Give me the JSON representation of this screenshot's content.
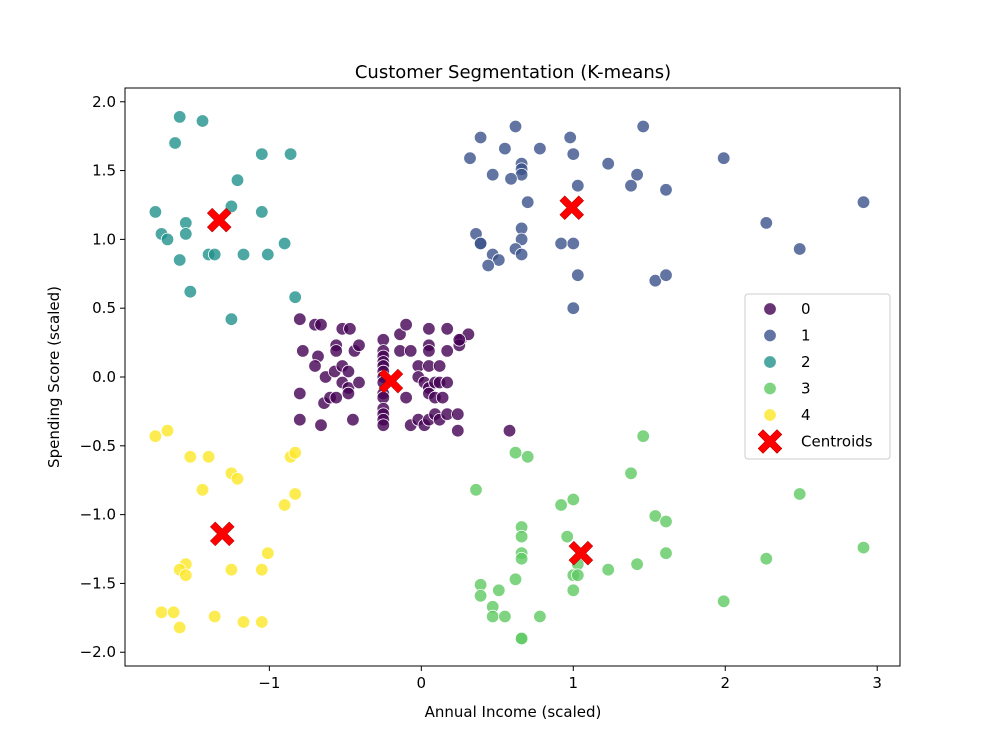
{
  "chart_data": {
    "type": "scatter",
    "title": "Customer Segmentation (K-means)",
    "xlabel": "Annual Income (scaled)",
    "ylabel": "Spending Score (scaled)",
    "xlim": [
      -1.95,
      3.15
    ],
    "ylim": [
      -2.1,
      2.1
    ],
    "xticks": [
      -1,
      0,
      1,
      2,
      3
    ],
    "xtick_labels": [
      "−1",
      "0",
      "1",
      "2",
      "3"
    ],
    "yticks": [
      -2.0,
      -1.5,
      -1.0,
      -0.5,
      0.0,
      0.5,
      1.0,
      1.5,
      2.0
    ],
    "ytick_labels": [
      "−2.0",
      "−1.5",
      "−1.0",
      "−0.5",
      "0.0",
      "0.5",
      "1.0",
      "1.5",
      "2.0"
    ],
    "grid": false,
    "legend_position": "center-right",
    "series": [
      {
        "name": "0",
        "color": "#440154",
        "points": [
          [
            -0.8,
            0.42
          ],
          [
            -0.7,
            0.38
          ],
          [
            -0.66,
            0.38
          ],
          [
            -0.52,
            0.35
          ],
          [
            -0.47,
            0.35
          ],
          [
            -0.25,
            0.27
          ],
          [
            -0.14,
            0.31
          ],
          [
            -0.1,
            0.38
          ],
          [
            0.05,
            0.35
          ],
          [
            0.17,
            0.35
          ],
          [
            0.26,
            0.27
          ],
          [
            0.31,
            0.31
          ],
          [
            -0.78,
            0.19
          ],
          [
            -0.68,
            0.15
          ],
          [
            -0.56,
            0.23
          ],
          [
            -0.56,
            0.19
          ],
          [
            -0.44,
            0.19
          ],
          [
            -0.41,
            0.23
          ],
          [
            -0.25,
            0.19
          ],
          [
            -0.25,
            0.15
          ],
          [
            -0.25,
            0.11
          ],
          [
            -0.14,
            0.19
          ],
          [
            -0.07,
            0.19
          ],
          [
            0.05,
            0.23
          ],
          [
            0.05,
            0.19
          ],
          [
            0.17,
            0.19
          ],
          [
            0.25,
            0.23
          ],
          [
            0.25,
            0.27
          ],
          [
            -0.7,
            0.08
          ],
          [
            -0.63,
            0.0
          ],
          [
            -0.57,
            0.04
          ],
          [
            -0.52,
            0.08
          ],
          [
            -0.48,
            0.04
          ],
          [
            -0.25,
            0.08
          ],
          [
            -0.25,
            0.04
          ],
          [
            -0.25,
            0.0
          ],
          [
            -0.02,
            0.08
          ],
          [
            0.05,
            0.08
          ],
          [
            0.12,
            0.08
          ],
          [
            -0.52,
            -0.04
          ],
          [
            -0.48,
            -0.08
          ],
          [
            -0.41,
            -0.04
          ],
          [
            -0.25,
            -0.04
          ],
          [
            -0.02,
            0.0
          ],
          [
            0.02,
            -0.04
          ],
          [
            0.05,
            -0.08
          ],
          [
            0.09,
            -0.04
          ],
          [
            0.12,
            -0.04
          ],
          [
            0.17,
            -0.04
          ],
          [
            -0.8,
            -0.12
          ],
          [
            -0.64,
            -0.19
          ],
          [
            -0.6,
            -0.15
          ],
          [
            -0.56,
            -0.15
          ],
          [
            -0.48,
            -0.12
          ],
          [
            -0.25,
            -0.12
          ],
          [
            -0.25,
            -0.15
          ],
          [
            -0.1,
            -0.15
          ],
          [
            0.05,
            -0.12
          ],
          [
            0.09,
            -0.15
          ],
          [
            0.14,
            -0.15
          ],
          [
            -0.8,
            -0.31
          ],
          [
            -0.66,
            -0.35
          ],
          [
            -0.45,
            -0.31
          ],
          [
            -0.25,
            -0.23
          ],
          [
            -0.25,
            -0.27
          ],
          [
            -0.25,
            -0.31
          ],
          [
            -0.25,
            -0.35
          ],
          [
            -0.07,
            -0.35
          ],
          [
            -0.02,
            -0.31
          ],
          [
            0.02,
            -0.35
          ],
          [
            0.05,
            -0.31
          ],
          [
            0.09,
            -0.27
          ],
          [
            0.12,
            -0.31
          ],
          [
            0.17,
            -0.27
          ],
          [
            0.24,
            -0.27
          ],
          [
            0.24,
            -0.39
          ],
          [
            0.58,
            -0.39
          ]
        ]
      },
      {
        "name": "1",
        "color": "#3b528b",
        "points": [
          [
            0.62,
            1.82
          ],
          [
            0.39,
            1.74
          ],
          [
            0.98,
            1.74
          ],
          [
            1.46,
            1.82
          ],
          [
            0.55,
            1.66
          ],
          [
            0.78,
            1.66
          ],
          [
            0.32,
            1.59
          ],
          [
            0.66,
            1.55
          ],
          [
            0.66,
            1.51
          ],
          [
            0.66,
            1.47
          ],
          [
            0.47,
            1.47
          ],
          [
            0.59,
            1.44
          ],
          [
            1.0,
            1.62
          ],
          [
            1.23,
            1.55
          ],
          [
            1.42,
            1.47
          ],
          [
            1.38,
            1.39
          ],
          [
            1.03,
            1.39
          ],
          [
            1.61,
            1.36
          ],
          [
            1.99,
            1.59
          ],
          [
            2.91,
            1.27
          ],
          [
            0.7,
            1.27
          ],
          [
            2.27,
            1.12
          ],
          [
            0.36,
            1.04
          ],
          [
            0.66,
            1.08
          ],
          [
            0.66,
            1.0
          ],
          [
            0.39,
            0.97
          ],
          [
            0.39,
            0.97
          ],
          [
            0.62,
            0.93
          ],
          [
            0.47,
            0.89
          ],
          [
            0.66,
            0.89
          ],
          [
            0.51,
            0.85
          ],
          [
            0.44,
            0.81
          ],
          [
            0.92,
            0.97
          ],
          [
            1.0,
            0.97
          ],
          [
            2.49,
            0.93
          ],
          [
            1.03,
            0.74
          ],
          [
            1.54,
            0.7
          ],
          [
            1.61,
            0.74
          ],
          [
            1.0,
            0.5
          ]
        ]
      },
      {
        "name": "2",
        "color": "#21918c",
        "points": [
          [
            -1.59,
            1.89
          ],
          [
            -1.44,
            1.86
          ],
          [
            -1.62,
            1.7
          ],
          [
            -1.05,
            1.62
          ],
          [
            -0.86,
            1.62
          ],
          [
            -1.21,
            1.43
          ],
          [
            -1.25,
            1.24
          ],
          [
            -1.75,
            1.2
          ],
          [
            -1.05,
            1.2
          ],
          [
            -1.55,
            1.12
          ],
          [
            -1.71,
            1.04
          ],
          [
            -1.55,
            1.04
          ],
          [
            -1.67,
            1.0
          ],
          [
            -0.9,
            0.97
          ],
          [
            -1.4,
            0.89
          ],
          [
            -1.36,
            0.89
          ],
          [
            -1.17,
            0.89
          ],
          [
            -1.01,
            0.89
          ],
          [
            -1.59,
            0.85
          ],
          [
            -1.52,
            0.62
          ],
          [
            -0.83,
            0.58
          ],
          [
            -1.25,
            0.42
          ]
        ]
      },
      {
        "name": "3",
        "color": "#5ec962",
        "points": [
          [
            1.46,
            -0.43
          ],
          [
            0.62,
            -0.55
          ],
          [
            0.7,
            -0.58
          ],
          [
            1.38,
            -0.7
          ],
          [
            0.36,
            -0.82
          ],
          [
            2.49,
            -0.85
          ],
          [
            1.0,
            -0.89
          ],
          [
            0.92,
            -0.93
          ],
          [
            1.54,
            -1.01
          ],
          [
            1.61,
            -1.05
          ],
          [
            0.66,
            -1.09
          ],
          [
            0.66,
            -1.16
          ],
          [
            0.96,
            -1.16
          ],
          [
            0.66,
            -1.28
          ],
          [
            0.66,
            -1.32
          ],
          [
            1.61,
            -1.28
          ],
          [
            2.27,
            -1.32
          ],
          [
            2.91,
            -1.24
          ],
          [
            1.03,
            -1.36
          ],
          [
            1.23,
            -1.4
          ],
          [
            1.42,
            -1.36
          ],
          [
            1.0,
            -1.44
          ],
          [
            1.03,
            -1.44
          ],
          [
            0.62,
            -1.47
          ],
          [
            0.39,
            -1.51
          ],
          [
            0.51,
            -1.55
          ],
          [
            1.0,
            -1.55
          ],
          [
            0.39,
            -1.59
          ],
          [
            1.99,
            -1.63
          ],
          [
            0.47,
            -1.67
          ],
          [
            0.47,
            -1.74
          ],
          [
            0.55,
            -1.74
          ],
          [
            0.78,
            -1.74
          ],
          [
            0.66,
            -1.9
          ],
          [
            0.66,
            -1.9
          ]
        ]
      },
      {
        "name": "4",
        "color": "#fde725",
        "points": [
          [
            -1.75,
            -0.43
          ],
          [
            -1.67,
            -0.39
          ],
          [
            -1.52,
            -0.58
          ],
          [
            -1.4,
            -0.58
          ],
          [
            -0.86,
            -0.58
          ],
          [
            -0.83,
            -0.55
          ],
          [
            -1.25,
            -0.7
          ],
          [
            -1.21,
            -0.74
          ],
          [
            -1.44,
            -0.82
          ],
          [
            -0.83,
            -0.85
          ],
          [
            -0.9,
            -0.93
          ],
          [
            -1.01,
            -1.28
          ],
          [
            -1.55,
            -1.36
          ],
          [
            -1.59,
            -1.4
          ],
          [
            -1.55,
            -1.44
          ],
          [
            -1.25,
            -1.4
          ],
          [
            -1.05,
            -1.4
          ],
          [
            -1.71,
            -1.71
          ],
          [
            -1.63,
            -1.71
          ],
          [
            -1.36,
            -1.74
          ],
          [
            -1.17,
            -1.78
          ],
          [
            -1.05,
            -1.78
          ],
          [
            -1.59,
            -1.82
          ]
        ]
      }
    ],
    "centroids": {
      "name": "Centroids",
      "color": "#ff0000",
      "marker": "X",
      "points": [
        [
          -0.2,
          -0.03
        ],
        [
          0.99,
          1.23
        ],
        [
          -1.33,
          1.14
        ],
        [
          1.05,
          -1.28
        ],
        [
          -1.31,
          -1.14
        ]
      ]
    },
    "legend": [
      "0",
      "1",
      "2",
      "3",
      "4",
      "Centroids"
    ]
  }
}
